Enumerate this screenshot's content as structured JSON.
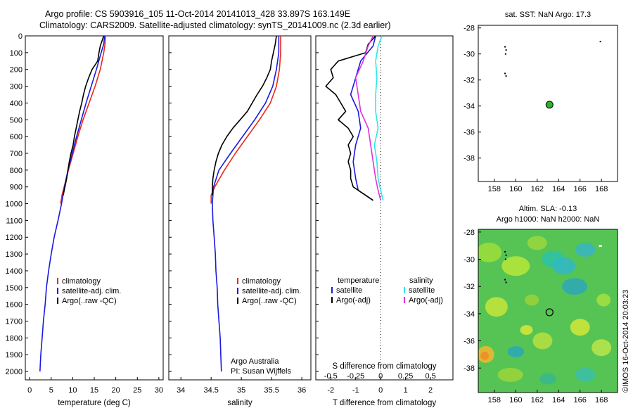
{
  "titles": {
    "line1": "Argo profile: CS 5903916_105 11-Oct-2014 20141013_428 33.897S 163.149E",
    "line2": "Climatology: CARS2009. Satellite-adjusted climatology: synTS_20141009.nc (2.3d earlier)"
  },
  "colors": {
    "climatology": "#e8291c",
    "satellite": "#1a1adf",
    "argo": "#000000",
    "satellite_salinity": "#2ee8e8",
    "argo_salinity": "#e030e0",
    "green_marker": "#2bb32b"
  },
  "footer": {
    "vertical_label": "©IMOS 16-Oct-2014 20:03:23"
  },
  "chart_data": [
    {
      "type": "line",
      "id": "temperature",
      "xlabel": "temperature (deg C)",
      "xlim": [
        -1,
        31
      ],
      "ylim": [
        0,
        2050
      ],
      "xticks": [
        "0",
        "5",
        "10",
        "15",
        "20",
        "25",
        "30"
      ],
      "yticks": [
        "0",
        "100",
        "200",
        "300",
        "400",
        "500",
        "600",
        "700",
        "800",
        "900",
        "1000",
        "1100",
        "1200",
        "1300",
        "1400",
        "1500",
        "1600",
        "1700",
        "1800",
        "1900",
        "2000"
      ],
      "legend": [
        "climatology",
        "satellite-adj. clim.",
        "Argo(..raw -QC)"
      ],
      "series": [
        {
          "name": "climatology",
          "points": [
            [
              17.6,
              0
            ],
            [
              17.5,
              50
            ],
            [
              17.2,
              100
            ],
            [
              16.4,
              200
            ],
            [
              15.2,
              300
            ],
            [
              13.8,
              400
            ],
            [
              12.4,
              500
            ],
            [
              11.2,
              600
            ],
            [
              10.1,
              700
            ],
            [
              9.0,
              800
            ],
            [
              7.5,
              950
            ],
            [
              7.2,
              1000
            ]
          ]
        },
        {
          "name": "satellite-adj. clim.",
          "points": [
            [
              17.4,
              0
            ],
            [
              17.2,
              50
            ],
            [
              16.6,
              100
            ],
            [
              15.5,
              200
            ],
            [
              14.3,
              300
            ],
            [
              13.1,
              400
            ],
            [
              12.0,
              500
            ],
            [
              10.9,
              600
            ],
            [
              9.9,
              700
            ],
            [
              8.9,
              800
            ],
            [
              8.1,
              900
            ],
            [
              7.4,
              1000
            ],
            [
              6.6,
              1100
            ],
            [
              5.7,
              1200
            ],
            [
              5.0,
              1300
            ],
            [
              4.4,
              1400
            ],
            [
              3.9,
              1500
            ],
            [
              3.6,
              1600
            ],
            [
              3.2,
              1700
            ],
            [
              2.9,
              1800
            ],
            [
              2.6,
              1900
            ],
            [
              2.4,
              2000
            ]
          ]
        },
        {
          "name": "Argo(..raw -QC)",
          "points": [
            [
              17.2,
              0
            ],
            [
              16.8,
              30
            ],
            [
              16.4,
              60
            ],
            [
              16.1,
              100
            ],
            [
              15.8,
              150
            ],
            [
              14.5,
              200
            ],
            [
              13.7,
              250
            ],
            [
              13.0,
              300
            ],
            [
              12.5,
              350
            ],
            [
              12.1,
              400
            ],
            [
              11.6,
              450
            ],
            [
              11.2,
              500
            ],
            [
              10.8,
              550
            ],
            [
              10.4,
              600
            ],
            [
              10.1,
              650
            ],
            [
              9.6,
              700
            ],
            [
              9.2,
              750
            ],
            [
              8.9,
              800
            ],
            [
              8.6,
              850
            ],
            [
              8.2,
              900
            ],
            [
              7.8,
              950
            ]
          ]
        }
      ]
    },
    {
      "type": "line",
      "id": "salinity",
      "xlabel": "salinity",
      "xlim": [
        33.8,
        36.15
      ],
      "ylim": [
        0,
        2050
      ],
      "xticks": [
        "34",
        "34.5",
        "35",
        "35.5",
        "36"
      ],
      "legend": [
        "climatology",
        "satellite-adj. clim.",
        "Argo(..raw -QC)"
      ],
      "annotations": [
        "Argo Australia",
        "PI: Susan Wijffels"
      ],
      "series": [
        {
          "name": "climatology",
          "points": [
            [
              35.65,
              0
            ],
            [
              35.65,
              100
            ],
            [
              35.63,
              200
            ],
            [
              35.58,
              300
            ],
            [
              35.48,
              400
            ],
            [
              35.3,
              500
            ],
            [
              35.1,
              600
            ],
            [
              34.9,
              700
            ],
            [
              34.72,
              800
            ],
            [
              34.56,
              900
            ],
            [
              34.5,
              950
            ],
            [
              34.5,
              1000
            ]
          ]
        },
        {
          "name": "satellite-adj. clim.",
          "points": [
            [
              35.62,
              0
            ],
            [
              35.62,
              100
            ],
            [
              35.58,
              200
            ],
            [
              35.52,
              300
            ],
            [
              35.4,
              400
            ],
            [
              35.22,
              500
            ],
            [
              35.02,
              600
            ],
            [
              34.82,
              700
            ],
            [
              34.63,
              800
            ],
            [
              34.54,
              900
            ],
            [
              34.52,
              1000
            ],
            [
              34.53,
              1100
            ],
            [
              34.55,
              1200
            ],
            [
              34.57,
              1300
            ],
            [
              34.58,
              1400
            ],
            [
              34.6,
              1500
            ],
            [
              34.61,
              1600
            ],
            [
              34.63,
              1700
            ],
            [
              34.65,
              1800
            ],
            [
              34.66,
              1900
            ],
            [
              34.67,
              2000
            ]
          ]
        },
        {
          "name": "Argo(..raw -QC)",
          "points": [
            [
              35.58,
              0
            ],
            [
              35.56,
              50
            ],
            [
              35.53,
              100
            ],
            [
              35.5,
              150
            ],
            [
              35.48,
              200
            ],
            [
              35.42,
              250
            ],
            [
              35.35,
              300
            ],
            [
              35.26,
              350
            ],
            [
              35.18,
              400
            ],
            [
              35.1,
              450
            ],
            [
              34.98,
              500
            ],
            [
              34.86,
              550
            ],
            [
              34.76,
              600
            ],
            [
              34.68,
              650
            ],
            [
              34.62,
              700
            ],
            [
              34.58,
              750
            ],
            [
              34.55,
              800
            ],
            [
              34.53,
              850
            ],
            [
              34.52,
              900
            ],
            [
              34.52,
              950
            ]
          ]
        }
      ]
    },
    {
      "type": "line",
      "id": "difference",
      "xlabel": "T difference from climatology",
      "xlabel_top": "S difference from climatology",
      "xlim": [
        -2.6,
        2.9
      ],
      "ylim": [
        0,
        2050
      ],
      "xticks": [
        "-2",
        "-1",
        "0",
        "1",
        "2"
      ],
      "xticks_salinity": [
        "-0.5",
        "-0.25",
        "0",
        "0.25",
        "0.5"
      ],
      "legend_headers": [
        "temperature",
        "salinity"
      ],
      "legend": [
        "satellite",
        "Argo(-adj)",
        "satellite",
        "Argo(-adj)"
      ],
      "series": [
        {
          "name": "satellite",
          "points": [
            [
              -0.2,
              0
            ],
            [
              -0.3,
              60
            ],
            [
              -0.8,
              150
            ],
            [
              -1.0,
              250
            ],
            [
              -1.2,
              350
            ],
            [
              -0.9,
              450
            ],
            [
              -0.8,
              550
            ],
            [
              -1.0,
              650
            ],
            [
              -1.1,
              750
            ],
            [
              -1.0,
              850
            ],
            [
              -0.9,
              920
            ],
            [
              -0.3,
              980
            ]
          ]
        },
        {
          "name": "Argo(-adj)",
          "points": [
            [
              -0.2,
              0
            ],
            [
              -0.5,
              50
            ],
            [
              -0.6,
              100
            ],
            [
              -1.7,
              150
            ],
            [
              -2.0,
              200
            ],
            [
              -1.9,
              250
            ],
            [
              -2.2,
              300
            ],
            [
              -1.8,
              350
            ],
            [
              -1.6,
              400
            ],
            [
              -1.4,
              450
            ],
            [
              -1.7,
              500
            ],
            [
              -1.3,
              550
            ],
            [
              -1.1,
              600
            ],
            [
              -1.3,
              650
            ],
            [
              -1.2,
              700
            ],
            [
              -1.3,
              750
            ],
            [
              -1.2,
              800
            ],
            [
              -1.2,
              850
            ],
            [
              -1.1,
              900
            ],
            [
              -0.3,
              980
            ]
          ]
        },
        {
          "name": "satellite",
          "points": [
            [
              0.05,
              0
            ],
            [
              -0.1,
              60
            ],
            [
              -0.2,
              150
            ],
            [
              -0.15,
              250
            ],
            [
              -0.2,
              350
            ],
            [
              -0.2,
              450
            ],
            [
              -0.1,
              550
            ],
            [
              -0.25,
              650
            ],
            [
              -0.15,
              750
            ],
            [
              -0.1,
              850
            ],
            [
              0.0,
              920
            ],
            [
              0.1,
              980
            ]
          ]
        },
        {
          "name": "Argo(-adj)",
          "points": [
            [
              -0.3,
              0
            ],
            [
              -0.5,
              60
            ],
            [
              -0.7,
              150
            ],
            [
              -1.0,
              250
            ],
            [
              -0.9,
              350
            ],
            [
              -0.8,
              450
            ],
            [
              -0.5,
              550
            ],
            [
              -0.4,
              650
            ],
            [
              -0.3,
              750
            ],
            [
              -0.2,
              850
            ],
            [
              -0.1,
              920
            ],
            [
              0.0,
              980
            ]
          ]
        }
      ]
    },
    {
      "type": "scatter",
      "id": "sst_map",
      "title": "sat. SST: NaN Argo: 17.3",
      "xlim": [
        156.5,
        169.5
      ],
      "ylim": [
        -39.8,
        -27.8
      ],
      "xticks": [
        "158",
        "160",
        "162",
        "164",
        "166",
        "168"
      ],
      "yticks": [
        "-28",
        "-30",
        "-32",
        "-34",
        "-36",
        "-38"
      ],
      "points": [
        [
          163.15,
          -33.9
        ]
      ]
    },
    {
      "type": "heatmap",
      "id": "sla_map",
      "title_line1": "Altim. SLA: -0.13",
      "title_line2": "Argo h1000: NaN h2000: NaN",
      "xlim": [
        156.5,
        169.5
      ],
      "ylim": [
        -39.8,
        -27.8
      ],
      "xticks": [
        "158",
        "160",
        "162",
        "164",
        "166",
        "168"
      ],
      "yticks": [
        "-28",
        "-30",
        "-32",
        "-34",
        "-36",
        "-38"
      ],
      "points": [
        [
          163.15,
          -33.9
        ]
      ]
    }
  ]
}
